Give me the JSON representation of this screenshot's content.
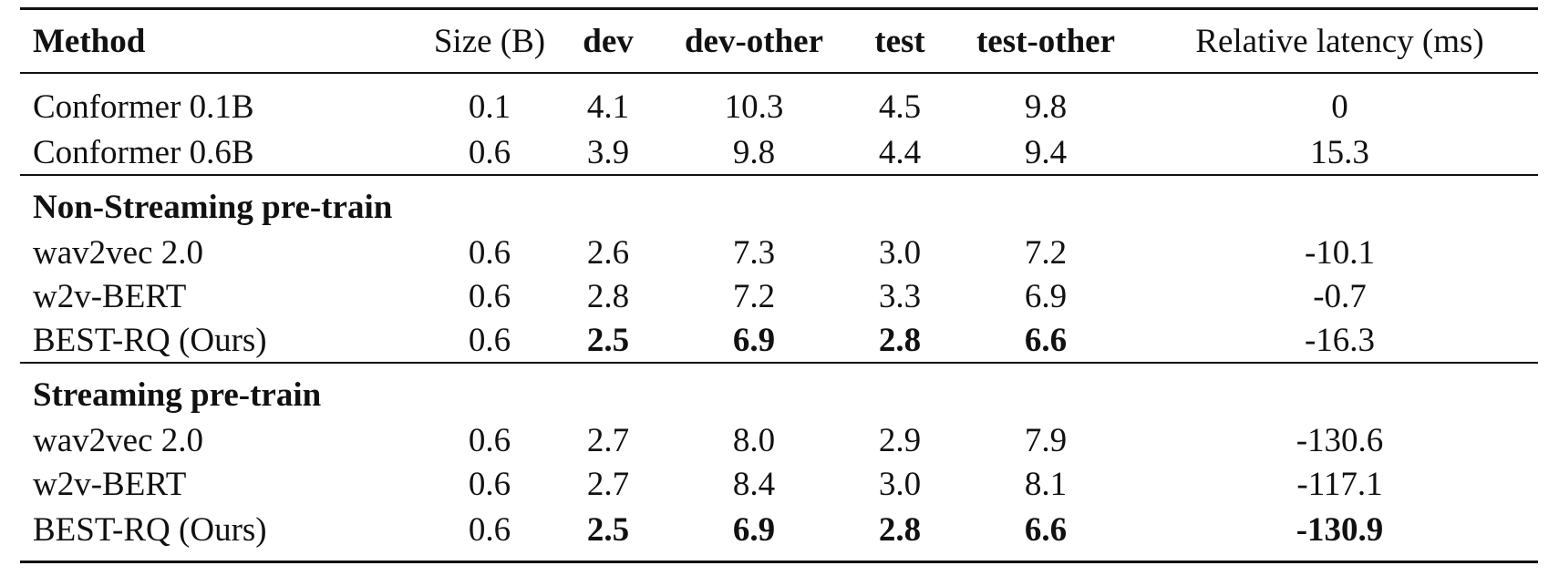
{
  "table": {
    "headers": [
      {
        "label": "Method",
        "bold": true
      },
      {
        "label": "Size (B)",
        "bold": false
      },
      {
        "label": "dev",
        "bold": true
      },
      {
        "label": "dev-other",
        "bold": true
      },
      {
        "label": "test",
        "bold": true
      },
      {
        "label": "test-other",
        "bold": true
      },
      {
        "label": "Relative latency (ms)",
        "bold": false
      }
    ],
    "sections": [
      {
        "title": "",
        "rows": [
          {
            "cells": [
              "Conformer 0.1B",
              "0.1",
              "4.1",
              "10.3",
              "4.5",
              "9.8",
              "0"
            ],
            "bold": []
          },
          {
            "cells": [
              "Conformer 0.6B",
              "0.6",
              "3.9",
              "9.8",
              "4.4",
              "9.4",
              "15.3"
            ],
            "bold": []
          }
        ]
      },
      {
        "title": "Non-Streaming pre-train",
        "rows": [
          {
            "cells": [
              "wav2vec 2.0",
              "0.6",
              "2.6",
              "7.3",
              "3.0",
              "7.2",
              "-10.1"
            ],
            "bold": []
          },
          {
            "cells": [
              "w2v-BERT",
              "0.6",
              "2.8",
              "7.2",
              "3.3",
              "6.9",
              "-0.7"
            ],
            "bold": []
          },
          {
            "cells": [
              "BEST-RQ (Ours)",
              "0.6",
              "2.5",
              "6.9",
              "2.8",
              "6.6",
              "-16.3"
            ],
            "bold": [
              2,
              3,
              4,
              5
            ]
          }
        ]
      },
      {
        "title": "Streaming pre-train",
        "rows": [
          {
            "cells": [
              "wav2vec 2.0",
              "0.6",
              "2.7",
              "8.0",
              "2.9",
              "7.9",
              "-130.6"
            ],
            "bold": []
          },
          {
            "cells": [
              "w2v-BERT",
              "0.6",
              "2.7",
              "8.4",
              "3.0",
              "8.1",
              "-117.1"
            ],
            "bold": []
          },
          {
            "cells": [
              "BEST-RQ (Ours)",
              "0.6",
              "2.5",
              "6.9",
              "2.8",
              "6.6",
              "-130.9"
            ],
            "bold": [
              2,
              3,
              4,
              5,
              6
            ]
          }
        ]
      }
    ]
  }
}
